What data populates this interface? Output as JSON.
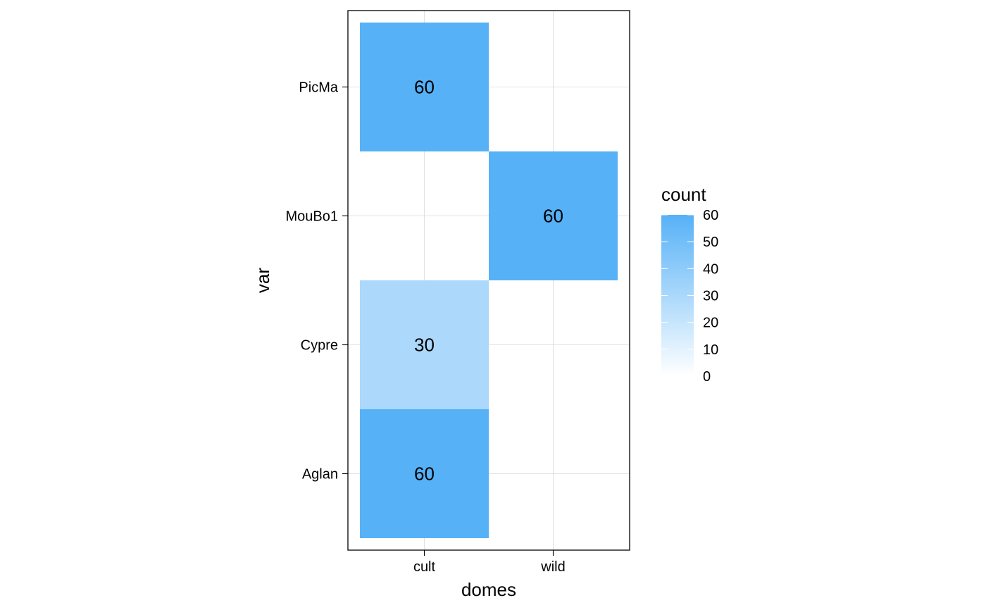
{
  "chart_data": {
    "type": "heatmap",
    "xlabel": "domes",
    "ylabel": "var",
    "x_categories": [
      "cult",
      "wild"
    ],
    "y_categories": [
      "Aglan",
      "Cypre",
      "MouBo1",
      "PicMa"
    ],
    "cells": [
      {
        "x": "cult",
        "y": "PicMa",
        "value": 60
      },
      {
        "x": "wild",
        "y": "MouBo1",
        "value": 60
      },
      {
        "x": "cult",
        "y": "Cypre",
        "value": 30
      },
      {
        "x": "cult",
        "y": "Aglan",
        "value": 60
      }
    ],
    "legend": {
      "title": "count",
      "position": "right",
      "ticks": [
        0,
        10,
        20,
        30,
        40,
        50,
        60
      ],
      "range": [
        0,
        60
      ],
      "color_low": "#ffffff",
      "color_high": "#56b1f7"
    },
    "grid": true
  }
}
